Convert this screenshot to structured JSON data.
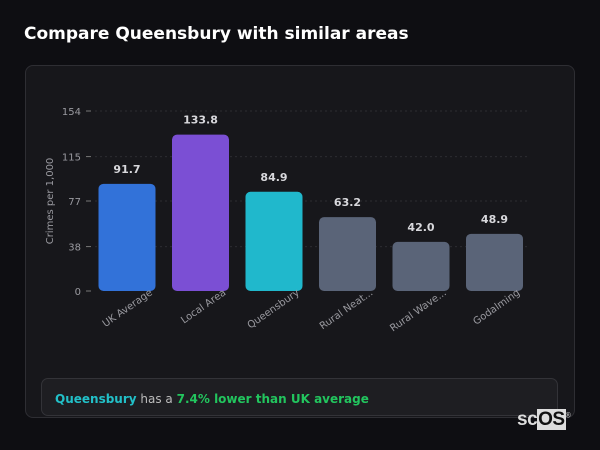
{
  "header": {
    "title": "Compare Queensbury with similar areas"
  },
  "chart_data": {
    "type": "bar",
    "categories": [
      "UK Average",
      "Local Area",
      "Queensbury",
      "Rural Neat...",
      "Rural Wave...",
      "Godalming"
    ],
    "values": [
      91.7,
      133.8,
      84.9,
      63.2,
      42.0,
      48.9
    ],
    "value_labels": [
      "91.7",
      "133.8",
      "84.9",
      "63.2",
      "42.0",
      "48.9"
    ],
    "colors": [
      "#3272d9",
      "#7b4fd4",
      "#20b8cc",
      "#5a6478",
      "#5a6478",
      "#5a6478"
    ],
    "ylabel": "Crimes per 1,000",
    "xlabel": "",
    "ylim": [
      0,
      154
    ],
    "yticks": [
      0,
      38,
      77,
      115,
      154
    ],
    "grid": true
  },
  "summary": {
    "place": "Queensbury",
    "middle": " has a ",
    "difference": "7.4% lower than UK average"
  },
  "logo": {
    "text_sc": "sc",
    "text_os": "OS",
    "mark": "®"
  }
}
